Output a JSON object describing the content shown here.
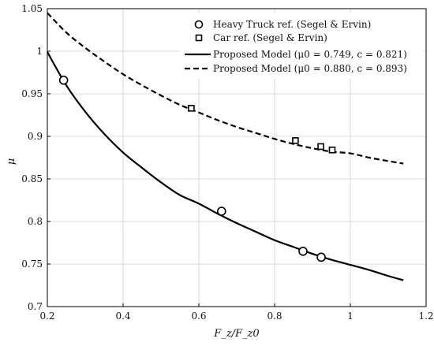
{
  "chart_data": {
    "type": "line",
    "xlabel": "F_z/F_z0",
    "ylabel": "μ",
    "xlim": [
      0.2,
      1.2
    ],
    "ylim": [
      0.7,
      1.05
    ],
    "xticks": [
      0.2,
      0.4,
      0.6,
      0.8,
      1,
      1.2
    ],
    "yticks": [
      0.7,
      0.75,
      0.8,
      0.85,
      0.9,
      0.95,
      1,
      1.05
    ],
    "xtick_labels": [
      "0.2",
      "0.4",
      "0.6",
      "0.8",
      "1",
      "1.2"
    ],
    "ytick_labels": [
      "0.7",
      "0.75",
      "0.8",
      "0.85",
      "0.9",
      "0.95",
      "1",
      "1.05"
    ],
    "grid": true,
    "legend_position": "top-right",
    "colors": {
      "series": "#000000",
      "grid": "#d9d9d9",
      "background": "#ffffff"
    },
    "series": [
      {
        "name": "Heavy Truck ref. (Segel & Ervin)",
        "kind": "scatter",
        "marker": "circle",
        "x": [
          0.243,
          0.66,
          0.875,
          0.923
        ],
        "y": [
          0.966,
          0.812,
          0.765,
          0.758
        ]
      },
      {
        "name": "Car ref. (Segel & Ervin)",
        "kind": "scatter",
        "marker": "square",
        "x": [
          0.58,
          0.855,
          0.922,
          0.952
        ],
        "y": [
          0.933,
          0.895,
          0.888,
          0.884
        ]
      },
      {
        "name": "Proposed Model (μ0 = 0.749, c = 0.821)",
        "kind": "line",
        "style": "solid",
        "x": [
          0.2,
          0.25,
          0.3,
          0.35,
          0.4,
          0.45,
          0.5,
          0.55,
          0.6,
          0.65,
          0.7,
          0.75,
          0.8,
          0.85,
          0.9,
          0.95,
          1.0,
          1.05,
          1.1,
          1.14
        ],
        "y": [
          0.999,
          0.96,
          0.929,
          0.903,
          0.881,
          0.863,
          0.846,
          0.831,
          0.821,
          0.809,
          0.798,
          0.788,
          0.778,
          0.77,
          0.762,
          0.755,
          0.749,
          0.743,
          0.736,
          0.731
        ]
      },
      {
        "name": "Proposed Model (μ0 = 0.880, c = 0.893)",
        "kind": "line",
        "style": "dashed",
        "x": [
          0.2,
          0.25,
          0.3,
          0.35,
          0.4,
          0.45,
          0.5,
          0.55,
          0.6,
          0.65,
          0.7,
          0.75,
          0.8,
          0.85,
          0.9,
          0.95,
          1.0,
          1.05,
          1.1,
          1.14
        ],
        "y": [
          1.045,
          1.022,
          1.004,
          0.988,
          0.973,
          0.96,
          0.948,
          0.937,
          0.928,
          0.919,
          0.911,
          0.904,
          0.897,
          0.891,
          0.886,
          0.882,
          0.88,
          0.875,
          0.871,
          0.868
        ]
      }
    ],
    "legend": [
      {
        "label": "Heavy Truck ref. (Segel & Ervin)",
        "marker": "circle"
      },
      {
        "label": "Car ref. (Segel & Ervin)",
        "marker": "square"
      },
      {
        "label": "Proposed Model (μ0 = 0.749, c = 0.821)",
        "line": "solid"
      },
      {
        "label": "Proposed Model (μ0 = 0.880, c = 0.893)",
        "line": "dashed"
      }
    ]
  }
}
